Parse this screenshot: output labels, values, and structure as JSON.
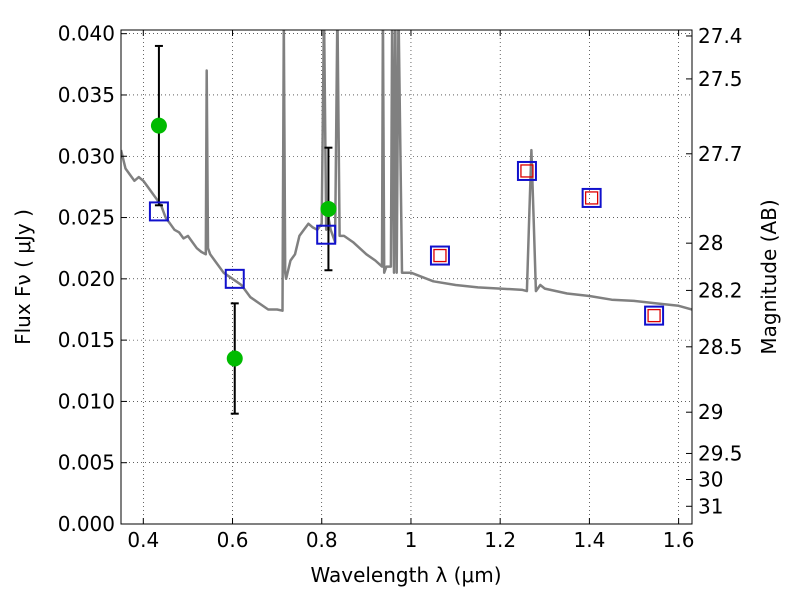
{
  "chart_data": {
    "type": "scatter",
    "xlabel": "Wavelength  λ (μm)",
    "ylabel": "Flux  Fν  ( μJy )",
    "y2label": "Magnitude (AB)",
    "xlim": [
      0.35,
      1.63
    ],
    "ylim": [
      0.0,
      0.0403
    ],
    "grid": true,
    "x_ticks": [
      0.4,
      0.6,
      0.8,
      1.0,
      1.2,
      1.4,
      1.6
    ],
    "x_tick_labels": [
      "0.4",
      "0.6",
      "0.8",
      "1",
      "1.2",
      "1.4",
      "1.6"
    ],
    "y_ticks": [
      0.0,
      0.005,
      0.01,
      0.015,
      0.02,
      0.025,
      0.03,
      0.035,
      0.04
    ],
    "y_tick_labels": [
      "0.000",
      "0.005",
      "0.010",
      "0.015",
      "0.020",
      "0.025",
      "0.030",
      "0.035",
      "0.040"
    ],
    "mag_ticks": [
      "27.4",
      "27.5",
      "27.7",
      "28",
      "28.2",
      "28.5",
      "29",
      "29.5",
      "30",
      "31"
    ],
    "series": [
      {
        "kind": "line",
        "color": "#808080",
        "x": [
          0.35,
          0.36,
          0.37,
          0.38,
          0.39,
          0.4,
          0.41,
          0.42,
          0.43,
          0.44,
          0.45,
          0.46,
          0.47,
          0.48,
          0.49,
          0.5,
          0.51,
          0.52,
          0.53,
          0.54,
          0.542,
          0.545,
          0.55,
          0.56,
          0.58,
          0.6,
          0.62,
          0.64,
          0.66,
          0.68,
          0.7,
          0.712,
          0.715,
          0.718,
          0.72,
          0.73,
          0.74,
          0.75,
          0.76,
          0.77,
          0.78,
          0.79,
          0.8,
          0.805,
          0.81,
          0.815,
          0.82,
          0.83,
          0.835,
          0.84,
          0.85,
          0.87,
          0.9,
          0.92,
          0.935,
          0.937,
          0.94,
          0.945,
          0.955,
          0.958,
          0.962,
          0.965,
          0.968,
          0.972,
          0.98,
          1.0,
          1.05,
          1.1,
          1.15,
          1.2,
          1.25,
          1.26,
          1.265,
          1.27,
          1.275,
          1.28,
          1.29,
          1.3,
          1.35,
          1.4,
          1.45,
          1.5,
          1.55,
          1.6,
          1.63
        ],
        "y": [
          0.0305,
          0.029,
          0.0285,
          0.028,
          0.0283,
          0.028,
          0.0275,
          0.027,
          0.0265,
          0.026,
          0.025,
          0.0245,
          0.024,
          0.0238,
          0.0233,
          0.0235,
          0.023,
          0.0225,
          0.0222,
          0.022,
          0.037,
          0.0225,
          0.022,
          0.0215,
          0.0205,
          0.02,
          0.0195,
          0.0185,
          0.018,
          0.0175,
          0.0175,
          0.0174,
          0.041,
          0.0205,
          0.02,
          0.0215,
          0.022,
          0.0235,
          0.024,
          0.0245,
          0.0242,
          0.024,
          0.0245,
          0.042,
          0.024,
          0.025,
          0.024,
          0.023,
          0.042,
          0.0235,
          0.0235,
          0.023,
          0.022,
          0.0215,
          0.021,
          0.042,
          0.0205,
          0.021,
          0.021,
          0.042,
          0.0205,
          0.042,
          0.0205,
          0.042,
          0.0205,
          0.0205,
          0.0198,
          0.0195,
          0.0193,
          0.0192,
          0.0191,
          0.019,
          0.025,
          0.0305,
          0.025,
          0.019,
          0.0195,
          0.0192,
          0.0188,
          0.0186,
          0.0183,
          0.0182,
          0.018,
          0.0178,
          0.0175
        ]
      },
      {
        "kind": "points",
        "marker": "filled-circle",
        "color": "#00bb00",
        "x": [
          0.435,
          0.605,
          0.815
        ],
        "y": [
          0.0325,
          0.0135,
          0.0257
        ],
        "yerr_low": [
          0.0065,
          0.0045,
          0.005
        ],
        "yerr_high": [
          0.0065,
          0.0045,
          0.005
        ]
      },
      {
        "kind": "points",
        "marker": "open-square",
        "color": "#1010cc",
        "x": [
          0.435,
          0.605,
          0.81,
          1.065,
          1.26,
          1.405,
          1.545
        ],
        "y": [
          0.0255,
          0.02,
          0.0236,
          0.0219,
          0.0288,
          0.0266,
          0.017
        ]
      },
      {
        "kind": "points",
        "marker": "open-square-small",
        "color": "#dd0000",
        "x": [
          1.065,
          1.26,
          1.405,
          1.545
        ],
        "y": [
          0.0219,
          0.0288,
          0.0266,
          0.017
        ]
      }
    ]
  }
}
